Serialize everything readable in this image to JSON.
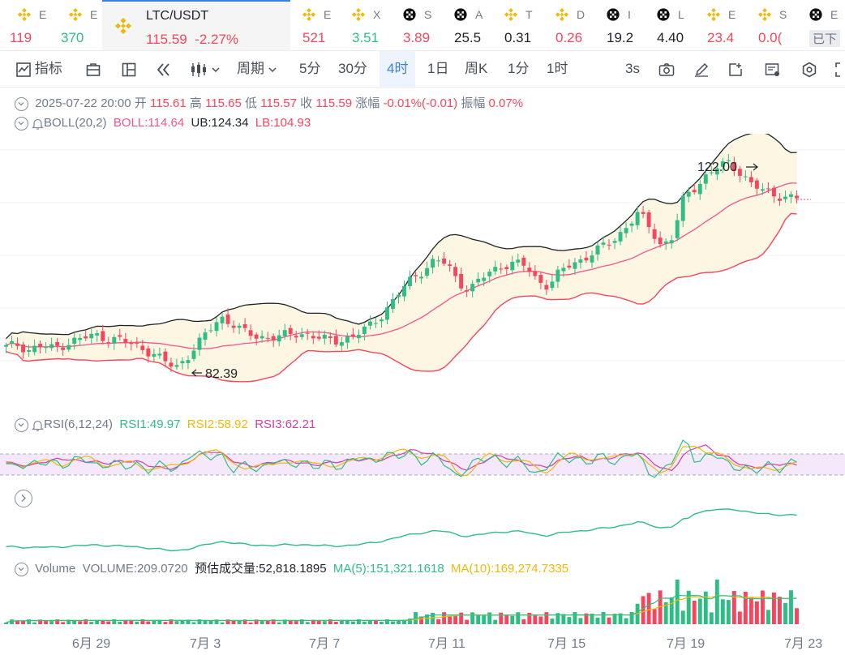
{
  "tickers": [
    {
      "name": "E",
      "price": "119",
      "dir": "dn",
      "icon": "binance-icon"
    },
    {
      "name": "E",
      "price": "370",
      "dir": "up",
      "icon": "binance-icon"
    },
    {
      "name": "E",
      "price": "521",
      "dir": "dn",
      "icon": "binance-icon"
    },
    {
      "name": "X",
      "price": "3.51",
      "dir": "up",
      "icon": "binance-icon"
    },
    {
      "name": "S",
      "price": "3.89",
      "dir": "dn",
      "icon": "okx-icon"
    },
    {
      "name": "A",
      "price": "25.5",
      "dir": "nt",
      "icon": "okx-icon"
    },
    {
      "name": "T",
      "price": "0.31",
      "dir": "nt",
      "icon": "binance-icon"
    },
    {
      "name": "D",
      "price": "0.26",
      "dir": "dn",
      "icon": "binance-icon"
    },
    {
      "name": "I",
      "price": "19.2",
      "dir": "nt",
      "icon": "okx-icon"
    },
    {
      "name": "L",
      "price": "4.40",
      "dir": "nt",
      "icon": "okx-icon"
    },
    {
      "name": "E",
      "price": "23.4",
      "dir": "dn",
      "icon": "binance-icon"
    },
    {
      "name": "S",
      "price": "0.0(",
      "dir": "dn",
      "icon": "binance-icon"
    },
    {
      "name": "E",
      "price": "已下",
      "dir": "nt",
      "icon": "okx-icon"
    }
  ],
  "active_ticker": {
    "pair": "LTC/USDT",
    "price": "115.59",
    "change": "-2.27%"
  },
  "toolbar": {
    "indicators": "指标",
    "period": "周期",
    "intervals": [
      "5分",
      "30分",
      "4时",
      "1日",
      "周K",
      "1分",
      "1时"
    ],
    "selected": "4时",
    "refresh": "3s"
  },
  "ohlc": {
    "date": "2025-07-22 20:00",
    "open_label": "开",
    "open": "115.61",
    "high_label": "高",
    "high": "115.65",
    "low_label": "低",
    "low": "115.57",
    "close_label": "收",
    "close": "115.59",
    "chg_label": "涨幅",
    "chg": "-0.01%(-0.01)",
    "amp_label": "振幅",
    "amp": "0.07%"
  },
  "boll": {
    "name": "BOLL(20,2)",
    "mid": "BOLL:114.64",
    "ub": "UB:124.34",
    "lb": "LB:104.93"
  },
  "rsi": {
    "name": "RSI(6,12,24)",
    "rsi1": "RSI1:49.97",
    "rsi2": "RSI2:58.92",
    "rsi3": "RSI3:62.21"
  },
  "volume": {
    "name": "Volume",
    "vol": "VOLUME:209.0720",
    "est": "预估成交量:52,818.1895",
    "ma5": "MA(5):151,321.1618",
    "ma10": "MA(10):169,274.7335"
  },
  "annotations": {
    "high": "122.00",
    "low": "82.39"
  },
  "x_labels": [
    "6月 29",
    "7月 3",
    "7月 7",
    "7月 11",
    "7月 15",
    "7月 19",
    "7月 23"
  ],
  "colors": {
    "up": "#2ebd85",
    "down": "#f6465d",
    "accent": "#3d7fe0",
    "boll_mid": "#f0568c",
    "boll_fill": "#fdf6e3"
  },
  "chart_data": {
    "type": "candlestick",
    "x_ticks": [
      "6月 29",
      "7月 3",
      "7月 7",
      "7月 11",
      "7月 15",
      "7月 19",
      "7月 23"
    ],
    "price_high": "122.00",
    "price_low": "82.39",
    "close_path": [
      88,
      88.5,
      87.5,
      88.2,
      87.8,
      88.4,
      89.2,
      89.8,
      90.2,
      89.6,
      89.4,
      88.6,
      87.9,
      86.8,
      85.4,
      84.2,
      86.2,
      88.6,
      91.2,
      93.6,
      92.4,
      90.8,
      90.1,
      89.8,
      89.9,
      90.3,
      90.6,
      90.2,
      89.5,
      89.1,
      89.6,
      90.3,
      91.6,
      93.4,
      95.9,
      98.6,
      100.8,
      102.4,
      104.2,
      103.4,
      100.2,
      98.6,
      100.6,
      102.1,
      103.2,
      103.6,
      103.0,
      100.4,
      99.4,
      101.8,
      103.4,
      104.2,
      105.6,
      106.8,
      108.2,
      110.6,
      112.8,
      110.1,
      106.8,
      108.4,
      115.6,
      117.6,
      119.8,
      121.4,
      122.0,
      120.4,
      118.2,
      116.9,
      116.2,
      115.9,
      115.6
    ],
    "legend": [
      "BOLL",
      "UB",
      "LB",
      "RSI1",
      "RSI2",
      "RSI3",
      "MA(5)",
      "MA(10)"
    ]
  }
}
